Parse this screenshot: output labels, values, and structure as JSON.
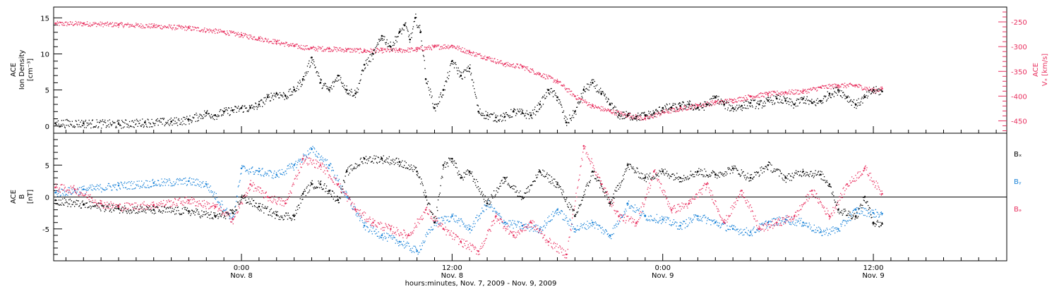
{
  "xaxis": {
    "title": "hours:minutes, Nov. 7, 2009 - Nov. 9, 2009",
    "ticks": [
      {
        "hour": 24,
        "time": "0:00",
        "date": "Nov. 8"
      },
      {
        "hour": 36,
        "time": "12:00",
        "date": "Nov. 8"
      },
      {
        "hour": 48,
        "time": "0:00",
        "date": "Nov. 9"
      },
      {
        "hour": 60,
        "time": "12:00",
        "date": "Nov. 9"
      }
    ]
  },
  "chart_data": [
    {
      "type": "scatter",
      "panel": "top",
      "x_unit": "hours since 2009-11-07 00:00",
      "xlim": [
        13.3,
        67.6
      ],
      "ylabel": [
        "ACE",
        "Ion Density",
        "[cm⁻³]"
      ],
      "ylim": [
        -1,
        16.5
      ],
      "yticks": [
        0,
        5,
        10,
        15
      ],
      "y2label": [
        "ACE",
        "Vₓ [km/s]"
      ],
      "y2lim": [
        -475,
        -220
      ],
      "y2ticks": [
        -250,
        -300,
        -350,
        -400,
        -450
      ],
      "series": [
        {
          "axis": "left",
          "color": "#000000",
          "x": [
            13.4,
            15,
            17,
            18.5,
            20,
            21,
            22,
            22.5,
            23,
            23.5,
            24,
            24.5,
            25,
            25.5,
            26,
            26.5,
            27,
            27.5,
            28,
            28.5,
            29,
            29.5,
            30,
            30.5,
            31,
            31.5,
            32,
            32.5,
            33,
            33.3,
            33.6,
            33.9,
            34.2,
            34.5,
            35,
            35.5,
            36,
            36.5,
            37,
            37.5,
            38,
            38.5,
            39,
            39.5,
            40,
            40.5,
            41,
            41.5,
            42,
            42.5,
            43,
            43.5,
            44,
            44.5,
            45,
            45.5,
            46,
            46.5,
            47,
            47.5,
            48,
            48.5,
            49,
            49.5,
            50,
            50.5,
            51,
            51.5,
            52,
            52.5,
            53,
            53.5,
            54,
            54.5,
            55,
            55.5,
            56,
            56.5,
            57,
            57.5,
            58,
            58.5,
            59,
            59.5,
            60,
            60.5
          ],
          "y": [
            0.4,
            0.4,
            0.3,
            0.5,
            0.6,
            0.9,
            1.8,
            1.5,
            2,
            2.2,
            2.5,
            2.5,
            3,
            4,
            4.5,
            4.2,
            5,
            6.5,
            9.5,
            6,
            5,
            7,
            5,
            4.5,
            8.5,
            10,
            12.5,
            11,
            13,
            14,
            12,
            15,
            13,
            6.5,
            2.5,
            5,
            9,
            7,
            8,
            2,
            1.5,
            1.2,
            1.3,
            2,
            1.8,
            1.5,
            3,
            5,
            4,
            0.5,
            2,
            5,
            6,
            4.5,
            3,
            1.5,
            1.5,
            1.3,
            1.5,
            1.8,
            2.5,
            2.6,
            2.8,
            3,
            2.5,
            3,
            4,
            3,
            2.5,
            2.8,
            3.2,
            3,
            3.5,
            3.8,
            3.5,
            3,
            3.8,
            3.2,
            3.5,
            4.5,
            5,
            4,
            3,
            4,
            5,
            4.8
          ]
        },
        {
          "axis": "right",
          "color": "#e8305f",
          "x": [
            13.4,
            15,
            17,
            19,
            21,
            23,
            24,
            25,
            26,
            27,
            28,
            29,
            30,
            31,
            32,
            33,
            34,
            35,
            36,
            37,
            38,
            39,
            40,
            41,
            42,
            43,
            44,
            45,
            46,
            47,
            48,
            49,
            50,
            51,
            52,
            53,
            54,
            55,
            56,
            57,
            58,
            59,
            60,
            60.5
          ],
          "y": [
            -253,
            -253,
            -255,
            -258,
            -262,
            -270,
            -276,
            -283,
            -290,
            -298,
            -303,
            -304,
            -306,
            -308,
            -307,
            -307,
            -305,
            -300,
            -298,
            -311,
            -322,
            -335,
            -340,
            -355,
            -370,
            -400,
            -420,
            -430,
            -438,
            -445,
            -432,
            -425,
            -418,
            -412,
            -408,
            -400,
            -395,
            -392,
            -390,
            -382,
            -378,
            -378,
            -388,
            -385
          ]
        }
      ]
    },
    {
      "type": "scatter",
      "panel": "bottom",
      "x_unit": "hours since 2009-11-07 00:00",
      "xlim": [
        13.3,
        67.6
      ],
      "ylabel": [
        "ACE",
        "B",
        "[nT]"
      ],
      "ylim": [
        -10,
        10
      ],
      "yticks": [
        -5,
        0,
        5
      ],
      "series": [
        {
          "name": "Bₓ",
          "color": "#000000",
          "x": [
            13.4,
            15,
            17,
            19,
            21,
            22.5,
            23.5,
            24,
            25,
            26,
            27,
            27.5,
            28,
            28.5,
            29,
            29.5,
            30,
            31,
            32,
            33,
            34,
            34.5,
            35,
            35.5,
            36,
            36.5,
            37,
            38,
            39,
            40,
            41,
            42,
            43,
            44,
            45,
            46,
            47,
            48,
            49,
            50,
            51,
            52,
            53,
            54,
            55,
            56,
            57,
            57.5,
            58,
            59,
            59.5,
            60,
            60.5
          ],
          "y": [
            -0.5,
            -1.2,
            -1.8,
            -2,
            -2.2,
            -3,
            -2.5,
            0,
            -1.5,
            -2.8,
            -3,
            0.5,
            2,
            2,
            1,
            -0.5,
            4,
            6,
            6,
            5.5,
            4,
            0,
            -4,
            5,
            6,
            3,
            4,
            -1,
            3,
            0,
            4,
            2,
            -3,
            4,
            -1,
            5,
            3,
            4,
            3,
            4,
            3.5,
            4.5,
            3,
            5,
            3,
            4,
            3.5,
            2,
            -2,
            -3,
            0,
            -4,
            -4.2
          ]
        },
        {
          "name": "Bᵧ",
          "color": "#1a83d8",
          "x": [
            13.4,
            15,
            17,
            19,
            21,
            22,
            23.5,
            24,
            25,
            26,
            27,
            28,
            29,
            30,
            31,
            32,
            33,
            34,
            35,
            36,
            37,
            38,
            39,
            40,
            41,
            42,
            43,
            44,
            45,
            46,
            47,
            48,
            49,
            50,
            51,
            52,
            53,
            54,
            55,
            56,
            57,
            58,
            59,
            60,
            60.5
          ],
          "y": [
            0.7,
            1.2,
            1.8,
            2.2,
            2.5,
            2,
            -3.5,
            4.5,
            4,
            3.5,
            5,
            7.5,
            5,
            0,
            -4.5,
            -6,
            -7,
            -8.5,
            -4,
            -3,
            -5,
            -1,
            -4,
            -4.5,
            -5,
            -2,
            -5,
            -4,
            -6,
            -1,
            -3,
            -3.5,
            -4.5,
            -3,
            -4,
            -5,
            -5.5,
            -4,
            -3.5,
            -4,
            -5.5,
            -5,
            -2,
            -2.5,
            -2.6
          ]
        },
        {
          "name": "Bₔ",
          "color": "#e8305f",
          "x": [
            13.4,
            14.5,
            16,
            17,
            19,
            21,
            22.5,
            23.5,
            24.5,
            25.5,
            26.5,
            27.5,
            28.5,
            29.5,
            30.5,
            31.5,
            32.5,
            33.5,
            34.5,
            35.5,
            36.5,
            37.5,
            38.5,
            39.5,
            40.5,
            41.5,
            42.5,
            43.5,
            44.5,
            45.5,
            46.5,
            47.5,
            48.5,
            49.5,
            50.5,
            51.5,
            52.5,
            53.5,
            54.5,
            55.5,
            56.5,
            57.5,
            58.5,
            59.5,
            60.5
          ],
          "y": [
            1.5,
            1.2,
            -1,
            -1.5,
            -1.2,
            -0.5,
            -1.5,
            -3.5,
            2,
            0,
            -1,
            6,
            5,
            2,
            -2,
            -4,
            -5,
            -6,
            -2,
            -5,
            -7,
            -8.5,
            -3,
            -6,
            -4,
            -7,
            -9,
            8,
            2,
            -3,
            -4,
            4,
            -2,
            -1,
            2,
            -4,
            1,
            -5,
            -4,
            -3,
            1,
            -3,
            2,
            4.5,
            0.5
          ]
        }
      ]
    }
  ]
}
